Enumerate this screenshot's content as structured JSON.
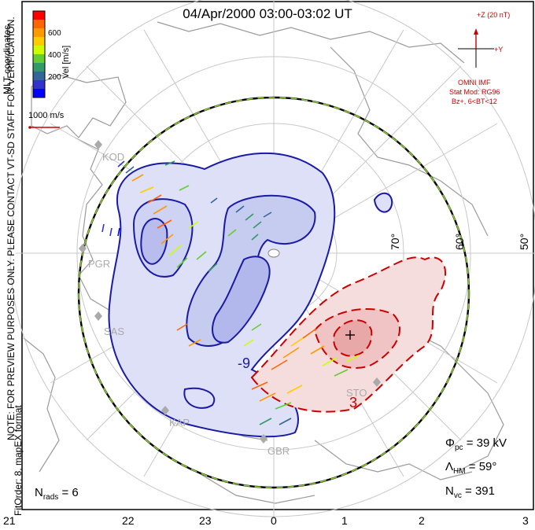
{
  "title": "04/Apr/2000 03:00-03:02 UT",
  "notes": {
    "preview_line": "NOTE: FOR PREVIEW PURPOSES ONLY. PLEASE CONTACT VT-SD STAFF FOR VERIFICATION.",
    "fit_line": "FitOrder: 8, mapEX format",
    "mlt_coordinates": "MLT coordinates"
  },
  "colorbar": {
    "label": "Vel [m/s]",
    "ticks": [
      "600",
      "400",
      "200"
    ],
    "colors": [
      "#ff0000",
      "#ff6600",
      "#ff9900",
      "#ffcc00",
      "#ccff00",
      "#66cc33",
      "#339966",
      "#336699",
      "#3333cc",
      "#0000ff"
    ]
  },
  "reference_vector": {
    "label": "1000 m/s",
    "color": "#cc0000"
  },
  "imf": {
    "z_label": "+Z (20 nT)",
    "y_label": "+Y",
    "source": "OMNI IMF",
    "model_line1": "Stat Mod: RG96",
    "model_line2": "Bz+, 6<BT<12",
    "color": "#cc0000"
  },
  "stations": [
    "KOD",
    "PGR",
    "SAS",
    "KAP",
    "GBR",
    "STO"
  ],
  "latitude_labels": [
    "70°",
    "60°",
    "50°"
  ],
  "mlt_ticks": [
    "21",
    "22",
    "23",
    "0",
    "1",
    "2",
    "3"
  ],
  "stats": {
    "phi_pc_sym": "Φ",
    "phi_pc_sub": "pc",
    "phi_pc_value": " = 39 kV",
    "lambda_sym": "Λ",
    "lambda_sub": "HM",
    "lambda_value": " = 59°",
    "nvc_sym": "N",
    "nvc_sub": "vc",
    "nvc_value": " = 391",
    "nrads_sym": "N",
    "nrads_sub": "rads",
    "nrads_value": " = 6"
  },
  "potential_contours": {
    "negative_label": "-9",
    "positive_label": "3",
    "negative_color": "#1a1aa6",
    "positive_color": "#cc0000"
  }
}
